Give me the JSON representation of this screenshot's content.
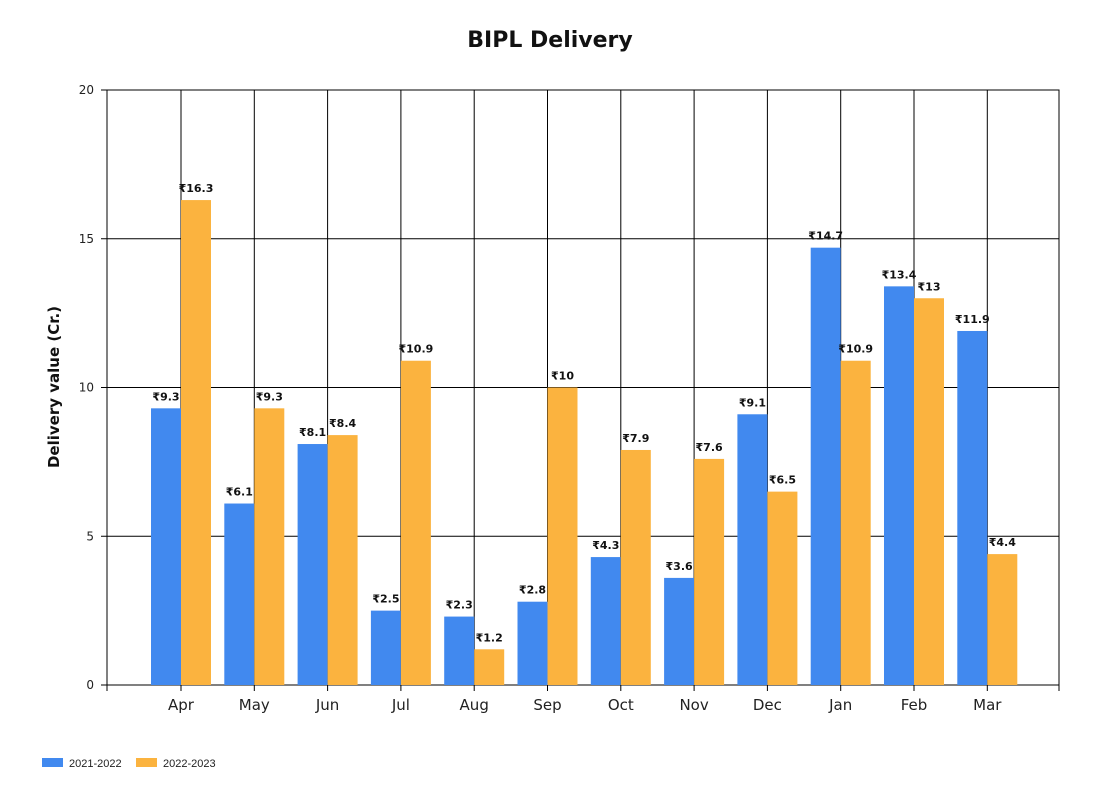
{
  "chart_data": {
    "type": "bar",
    "title": "BIPL Delivery",
    "xlabel": "",
    "ylabel": "Delivery value (Cr.)",
    "ylim": [
      0,
      20
    ],
    "yticks": [
      0,
      5,
      10,
      15,
      20
    ],
    "grid": true,
    "legend_position": "bottom-left",
    "value_prefix": "₹",
    "categories": [
      "Apr",
      "May",
      "Jun",
      "Jul",
      "Aug",
      "Sep",
      "Oct",
      "Nov",
      "Dec",
      "Jan",
      "Feb",
      "Mar"
    ],
    "series": [
      {
        "name": "2021-2022",
        "color": "#4189ef",
        "values": [
          9.3,
          6.1,
          8.1,
          2.5,
          2.3,
          2.8,
          4.3,
          3.6,
          9.1,
          14.7,
          13.4,
          11.9
        ]
      },
      {
        "name": "2022-2023",
        "color": "#fbb33f",
        "values": [
          16.3,
          9.3,
          8.4,
          10.9,
          1.2,
          10,
          7.9,
          7.6,
          6.5,
          10.9,
          13,
          4.4
        ]
      }
    ]
  }
}
